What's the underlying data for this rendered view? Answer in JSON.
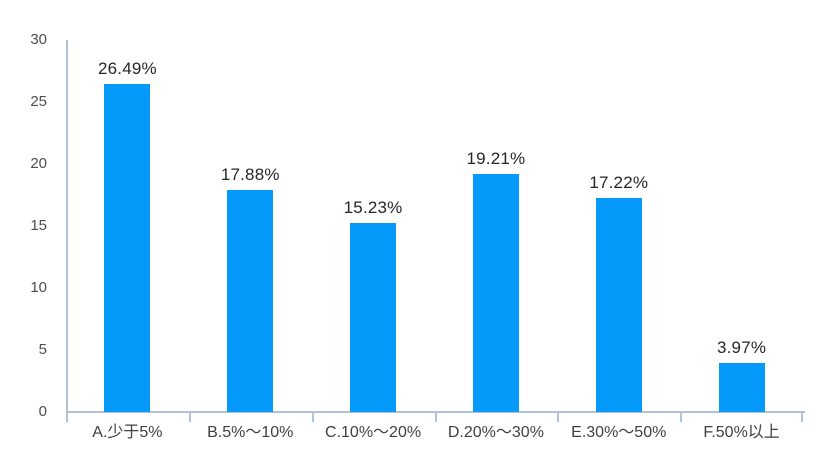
{
  "chart_data": {
    "type": "bar",
    "title": "",
    "xlabel": "",
    "ylabel": "",
    "categories": [
      "A.少于5%",
      "B.5%～10%",
      "C.10%～20%",
      "D.20%～30%",
      "E.30%～50%",
      "F.50%以上"
    ],
    "values": [
      26.49,
      17.88,
      15.23,
      19.21,
      17.22,
      3.97
    ],
    "value_labels": [
      "26.49%",
      "17.88%",
      "15.23%",
      "19.21%",
      "17.22%",
      "3.97%"
    ],
    "yticks": [
      0,
      5,
      10,
      15,
      20,
      25,
      30
    ],
    "ylim": [
      0,
      30
    ],
    "grid": false,
    "legend": "none",
    "bar_color": "#0599fa",
    "axis_color": "#b1c2d7",
    "value_label_color": "#262626",
    "category_label_color": "#404040",
    "ytick_label_color": "#4d4d4d"
  }
}
